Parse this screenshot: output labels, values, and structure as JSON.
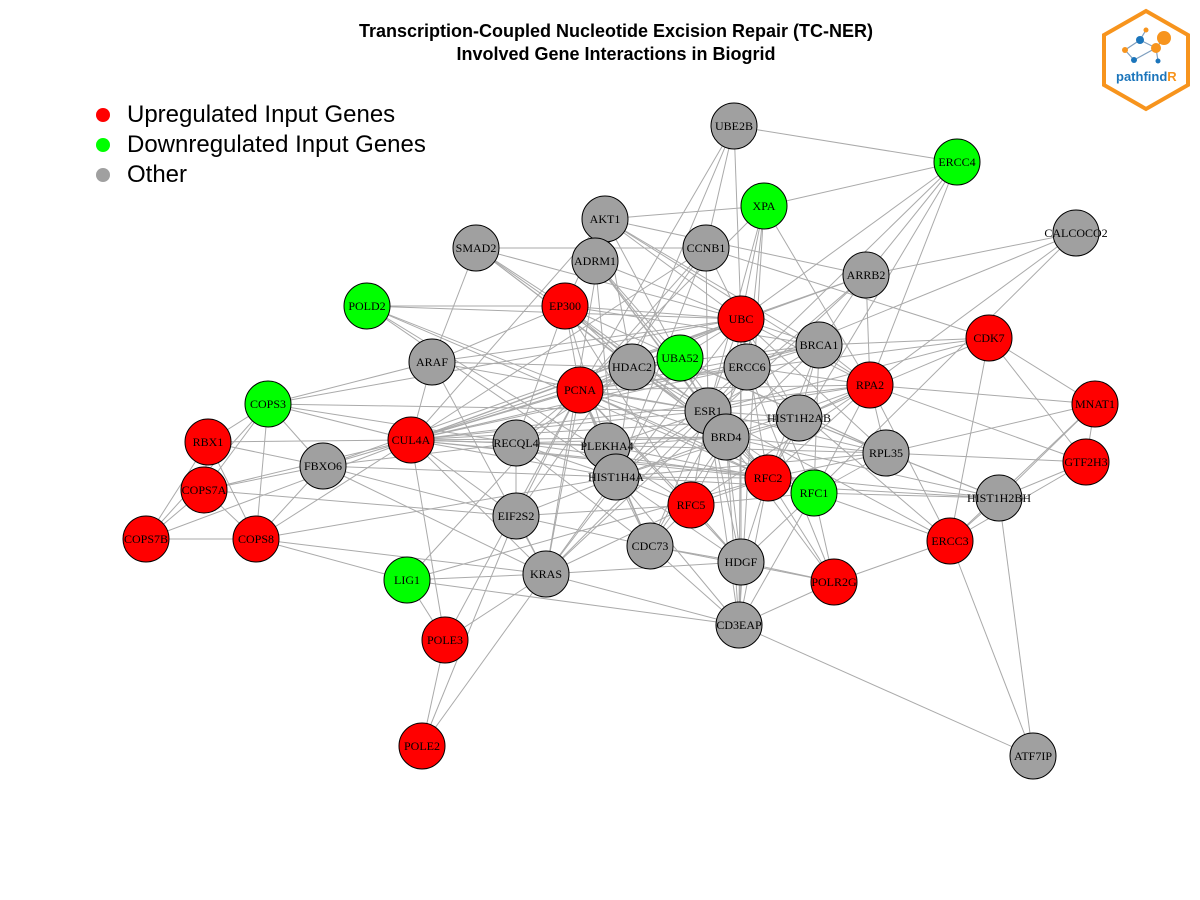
{
  "title": {
    "line1": "Transcription-Coupled Nucleotide Excision Repair (TC-NER)",
    "line2": "Involved Gene Interactions in Biogrid"
  },
  "legend": [
    {
      "label": "Upregulated Input Genes",
      "color": "#ff0000"
    },
    {
      "label": "Downregulated Input Genes",
      "color": "#00ff00"
    },
    {
      "label": "Other",
      "color": "#a0a0a0"
    }
  ],
  "logo": {
    "text_main": "pathfind",
    "text_accent": "R"
  },
  "colors": {
    "up": "#ff0000",
    "down": "#00ff00",
    "other": "#a0a0a0",
    "edge": "#aaaaaa",
    "logo_orange": "#f7941d",
    "logo_blue": "#1b75bb"
  },
  "nodes": [
    {
      "id": "UBE2B",
      "type": "other"
    },
    {
      "id": "ERCC4",
      "type": "down"
    },
    {
      "id": "XPA",
      "type": "down"
    },
    {
      "id": "AKT1",
      "type": "other"
    },
    {
      "id": "CALCOCO2",
      "type": "other"
    },
    {
      "id": "SMAD2",
      "type": "other"
    },
    {
      "id": "CCNB1",
      "type": "other"
    },
    {
      "id": "ADRM1",
      "type": "other"
    },
    {
      "id": "ARRB2",
      "type": "other"
    },
    {
      "id": "POLD2",
      "type": "down"
    },
    {
      "id": "EP300",
      "type": "up"
    },
    {
      "id": "UBC",
      "type": "up"
    },
    {
      "id": "CDK7",
      "type": "up"
    },
    {
      "id": "BRCA1",
      "type": "other"
    },
    {
      "id": "UBA52",
      "type": "down"
    },
    {
      "id": "ARAF",
      "type": "other"
    },
    {
      "id": "HDAC2",
      "type": "other"
    },
    {
      "id": "ERCC6",
      "type": "other"
    },
    {
      "id": "RPA2",
      "type": "up"
    },
    {
      "id": "MNAT1",
      "type": "up"
    },
    {
      "id": "PCNA",
      "type": "up"
    },
    {
      "id": "COPS3",
      "type": "down"
    },
    {
      "id": "ESR1",
      "type": "other"
    },
    {
      "id": "HIST1H2AB",
      "type": "other"
    },
    {
      "id": "RBX1",
      "type": "up"
    },
    {
      "id": "CUL4A",
      "type": "up"
    },
    {
      "id": "RECQL4",
      "type": "other"
    },
    {
      "id": "PLEKHA4",
      "type": "other"
    },
    {
      "id": "BRD4",
      "type": "other"
    },
    {
      "id": "RPL35",
      "type": "other"
    },
    {
      "id": "GTF2H3",
      "type": "up"
    },
    {
      "id": "FBXO6",
      "type": "other"
    },
    {
      "id": "HIST1H4A",
      "type": "other"
    },
    {
      "id": "RFC2",
      "type": "up"
    },
    {
      "id": "COPS7A",
      "type": "up"
    },
    {
      "id": "RFC1",
      "type": "down"
    },
    {
      "id": "HIST1H2BH",
      "type": "other"
    },
    {
      "id": "RFC5",
      "type": "up"
    },
    {
      "id": "EIF2S2",
      "type": "other"
    },
    {
      "id": "COPS7B",
      "type": "up"
    },
    {
      "id": "COPS8",
      "type": "up"
    },
    {
      "id": "ERCC3",
      "type": "up"
    },
    {
      "id": "CDC73",
      "type": "other"
    },
    {
      "id": "HDGF",
      "type": "other"
    },
    {
      "id": "LIG1",
      "type": "down"
    },
    {
      "id": "KRAS",
      "type": "other"
    },
    {
      "id": "POLR2G",
      "type": "up"
    },
    {
      "id": "CD3EAP",
      "type": "other"
    },
    {
      "id": "POLE3",
      "type": "up"
    },
    {
      "id": "POLE2",
      "type": "up"
    },
    {
      "id": "ATF7IP",
      "type": "other"
    }
  ],
  "edges": [
    [
      "UBE2B",
      "ERCC4"
    ],
    [
      "UBE2B",
      "UBC"
    ],
    [
      "UBE2B",
      "CCNB1"
    ],
    [
      "UBE2B",
      "PCNA"
    ],
    [
      "UBE2B",
      "HDAC2"
    ],
    [
      "ERCC4",
      "XPA"
    ],
    [
      "ERCC4",
      "RPA2"
    ],
    [
      "ERCC4",
      "ARRB2"
    ],
    [
      "ERCC4",
      "UBC"
    ],
    [
      "ERCC4",
      "ERCC6"
    ],
    [
      "ERCC4",
      "RFC2"
    ],
    [
      "XPA",
      "RPA2"
    ],
    [
      "XPA",
      "UBC"
    ],
    [
      "XPA",
      "PCNA"
    ],
    [
      "XPA",
      "ESR1"
    ],
    [
      "XPA",
      "CD3EAP"
    ],
    [
      "XPA",
      "ERCC6"
    ],
    [
      "AKT1",
      "XPA"
    ],
    [
      "AKT1",
      "EP300"
    ],
    [
      "AKT1",
      "ARRB2"
    ],
    [
      "AKT1",
      "HDAC2"
    ],
    [
      "AKT1",
      "ESR1"
    ],
    [
      "AKT1",
      "CUL4A"
    ],
    [
      "AKT1",
      "UBC"
    ],
    [
      "AKT1",
      "BRCA1"
    ],
    [
      "AKT1",
      "KRAS"
    ],
    [
      "AKT1",
      "RPA2"
    ],
    [
      "CALCOCO2",
      "ARRB2"
    ],
    [
      "CALCOCO2",
      "ERCC6"
    ],
    [
      "CALCOCO2",
      "RPA2"
    ],
    [
      "CALCOCO2",
      "RFC1"
    ],
    [
      "SMAD2",
      "ARAF"
    ],
    [
      "SMAD2",
      "EP300"
    ],
    [
      "SMAD2",
      "ESR1"
    ],
    [
      "SMAD2",
      "UBC"
    ],
    [
      "SMAD2",
      "HDAC2"
    ],
    [
      "SMAD2",
      "BRD4"
    ],
    [
      "SMAD2",
      "CCNB1"
    ],
    [
      "CCNB1",
      "UBC"
    ],
    [
      "CCNB1",
      "PCNA"
    ],
    [
      "CCNB1",
      "CDK7"
    ],
    [
      "CCNB1",
      "ESR1"
    ],
    [
      "CCNB1",
      "HIST1H4A"
    ],
    [
      "CCNB1",
      "CUL4A"
    ],
    [
      "CCNB1",
      "EIF2S2"
    ],
    [
      "ADRM1",
      "UBC"
    ],
    [
      "ADRM1",
      "ESR1"
    ],
    [
      "ADRM1",
      "HIST1H4A"
    ],
    [
      "ADRM1",
      "RFC2"
    ],
    [
      "ADRM1",
      "UBA52"
    ],
    [
      "ADRM1",
      "BRD4"
    ],
    [
      "ARRB2",
      "UBC"
    ],
    [
      "ARRB2",
      "BRCA1"
    ],
    [
      "ARRB2",
      "RPA2"
    ],
    [
      "ARRB2",
      "CUL4A"
    ],
    [
      "ARRB2",
      "ESR1"
    ],
    [
      "ARRB2",
      "KRAS"
    ],
    [
      "POLD2",
      "PCNA"
    ],
    [
      "POLD2",
      "EP300"
    ],
    [
      "POLD2",
      "RFC2"
    ],
    [
      "POLD2",
      "RFC5"
    ],
    [
      "POLD2",
      "HIST1H4A"
    ],
    [
      "POLD2",
      "UBC"
    ],
    [
      "EP300",
      "PCNA"
    ],
    [
      "EP300",
      "ESR1"
    ],
    [
      "EP300",
      "UBC"
    ],
    [
      "EP300",
      "HDAC2"
    ],
    [
      "EP300",
      "BRCA1"
    ],
    [
      "EP300",
      "HIST1H4A"
    ],
    [
      "EP300",
      "RECQL4"
    ],
    [
      "EP300",
      "BRD4"
    ],
    [
      "EP300",
      "ARAF"
    ],
    [
      "EP300",
      "RPL35"
    ],
    [
      "EP300",
      "RFC5"
    ],
    [
      "UBC",
      "UBA52"
    ],
    [
      "UBC",
      "BRCA1"
    ],
    [
      "UBC",
      "PCNA"
    ],
    [
      "UBC",
      "CUL4A"
    ],
    [
      "UBC",
      "ESR1"
    ],
    [
      "UBC",
      "HIST1H2AB"
    ],
    [
      "UBC",
      "RPA2"
    ],
    [
      "UBC",
      "HDAC2"
    ],
    [
      "UBC",
      "BRD4"
    ],
    [
      "UBC",
      "HDGF"
    ],
    [
      "UBC",
      "RFC2"
    ],
    [
      "UBC",
      "ERCC6"
    ],
    [
      "UBC",
      "COPS3"
    ],
    [
      "UBC",
      "FBXO6"
    ],
    [
      "UBC",
      "KRAS"
    ],
    [
      "UBC",
      "RPL35"
    ],
    [
      "UBC",
      "CD3EAP"
    ],
    [
      "UBC",
      "RFC1"
    ],
    [
      "CDK7",
      "MNAT1"
    ],
    [
      "CDK7",
      "GTF2H3"
    ],
    [
      "CDK7",
      "ERCC3"
    ],
    [
      "CDK7",
      "BRCA1"
    ],
    [
      "CDK7",
      "ESR1"
    ],
    [
      "CDK7",
      "HIST1H2AB"
    ],
    [
      "CDK7",
      "PCNA"
    ],
    [
      "BRCA1",
      "RPA2"
    ],
    [
      "BRCA1",
      "ERCC6"
    ],
    [
      "BRCA1",
      "PCNA"
    ],
    [
      "BRCA1",
      "ESR1"
    ],
    [
      "BRCA1",
      "HDAC2"
    ],
    [
      "BRCA1",
      "RFC2"
    ],
    [
      "BRCA1",
      "RFC1"
    ],
    [
      "BRCA1",
      "CUL4A"
    ],
    [
      "BRCA1",
      "HIST1H2AB"
    ],
    [
      "BRCA1",
      "BRD4"
    ],
    [
      "UBA52",
      "PCNA"
    ],
    [
      "UBA52",
      "ESR1"
    ],
    [
      "UBA52",
      "RPL35"
    ],
    [
      "UBA52",
      "CUL4A"
    ],
    [
      "UBA52",
      "RFC2"
    ],
    [
      "UBA52",
      "HDAC2"
    ],
    [
      "UBA52",
      "HIST1H4A"
    ],
    [
      "ARAF",
      "KRAS"
    ],
    [
      "ARAF",
      "COPS3"
    ],
    [
      "ARAF",
      "CUL4A"
    ],
    [
      "ARAF",
      "ESR1"
    ],
    [
      "ARAF",
      "UBC"
    ],
    [
      "ARAF",
      "HDAC2"
    ],
    [
      "HDAC2",
      "PCNA"
    ],
    [
      "HDAC2",
      "ESR1"
    ],
    [
      "HDAC2",
      "HIST1H4A"
    ],
    [
      "HDAC2",
      "BRD4"
    ],
    [
      "HDAC2",
      "CUL4A"
    ],
    [
      "HDAC2",
      "RECQL4"
    ],
    [
      "HDAC2",
      "RFC1"
    ],
    [
      "ERCC6",
      "RPA2"
    ],
    [
      "ERCC6",
      "PCNA"
    ],
    [
      "ERCC6",
      "ESR1"
    ],
    [
      "ERCC6",
      "HIST1H4A"
    ],
    [
      "ERCC6",
      "CDC73"
    ],
    [
      "ERCC6",
      "ERCC3"
    ],
    [
      "ERCC6",
      "POLR2G"
    ],
    [
      "ERCC6",
      "CUL4A"
    ],
    [
      "RPA2",
      "PCNA"
    ],
    [
      "RPA2",
      "RFC2"
    ],
    [
      "RPA2",
      "RFC1"
    ],
    [
      "RPA2",
      "RFC5"
    ],
    [
      "RPA2",
      "CUL4A"
    ],
    [
      "RPA2",
      "ESR1"
    ],
    [
      "RPA2",
      "HIST1H2AB"
    ],
    [
      "RPA2",
      "RPL35"
    ],
    [
      "RPA2",
      "GTF2H3"
    ],
    [
      "RPA2",
      "MNAT1"
    ],
    [
      "RPA2",
      "ERCC3"
    ],
    [
      "RPA2",
      "BRD4"
    ],
    [
      "MNAT1",
      "GTF2H3"
    ],
    [
      "MNAT1",
      "ERCC3"
    ],
    [
      "MNAT1",
      "HIST1H2BH"
    ],
    [
      "MNAT1",
      "RPL35"
    ],
    [
      "PCNA",
      "CUL4A"
    ],
    [
      "PCNA",
      "RFC2"
    ],
    [
      "PCNA",
      "RFC5"
    ],
    [
      "PCNA",
      "RFC1"
    ],
    [
      "PCNA",
      "LIG1"
    ],
    [
      "PCNA",
      "POLE3"
    ],
    [
      "PCNA",
      "ESR1"
    ],
    [
      "PCNA",
      "HIST1H4A"
    ],
    [
      "PCNA",
      "RECQL4"
    ],
    [
      "PCNA",
      "CDC73"
    ],
    [
      "PCNA",
      "HDGF"
    ],
    [
      "PCNA",
      "BRD4"
    ],
    [
      "PCNA",
      "PLEKHA4"
    ],
    [
      "PCNA",
      "EIF2S2"
    ],
    [
      "PCNA",
      "KRAS"
    ],
    [
      "COPS3",
      "RBX1"
    ],
    [
      "COPS3",
      "COPS7A"
    ],
    [
      "COPS3",
      "COPS7B"
    ],
    [
      "COPS3",
      "COPS8"
    ],
    [
      "COPS3",
      "CUL4A"
    ],
    [
      "COPS3",
      "FBXO6"
    ],
    [
      "COPS3",
      "RECQL4"
    ],
    [
      "COPS3",
      "ESR1"
    ],
    [
      "ESR1",
      "HIST1H2AB"
    ],
    [
      "ESR1",
      "BRD4"
    ],
    [
      "ESR1",
      "HIST1H4A"
    ],
    [
      "ESR1",
      "RPL35"
    ],
    [
      "ESR1",
      "CUL4A"
    ],
    [
      "ESR1",
      "RFC2"
    ],
    [
      "ESR1",
      "KRAS"
    ],
    [
      "ESR1",
      "RFC5"
    ],
    [
      "ESR1",
      "CDC73"
    ],
    [
      "ESR1",
      "HDGF"
    ],
    [
      "ESR1",
      "CD3EAP"
    ],
    [
      "ESR1",
      "PLEKHA4"
    ],
    [
      "ESR1",
      "ERCC3"
    ],
    [
      "HIST1H2AB",
      "BRD4"
    ],
    [
      "HIST1H2AB",
      "HIST1H4A"
    ],
    [
      "HIST1H2AB",
      "RPL35"
    ],
    [
      "HIST1H2AB",
      "HIST1H2BH"
    ],
    [
      "HIST1H2AB",
      "RFC2"
    ],
    [
      "HIST1H2AB",
      "CUL4A"
    ],
    [
      "RBX1",
      "CUL4A"
    ],
    [
      "RBX1",
      "COPS7A"
    ],
    [
      "RBX1",
      "COPS7B"
    ],
    [
      "RBX1",
      "COPS8"
    ],
    [
      "RBX1",
      "FBXO6"
    ],
    [
      "CUL4A",
      "COPS7A"
    ],
    [
      "CUL4A",
      "COPS7B"
    ],
    [
      "CUL4A",
      "COPS8"
    ],
    [
      "CUL4A",
      "FBXO6"
    ],
    [
      "CUL4A",
      "HIST1H4A"
    ],
    [
      "CUL4A",
      "BRD4"
    ],
    [
      "CUL4A",
      "RPL35"
    ],
    [
      "CUL4A",
      "RFC2"
    ],
    [
      "CUL4A",
      "POLE3"
    ],
    [
      "CUL4A",
      "KRAS"
    ],
    [
      "CUL4A",
      "EIF2S2"
    ],
    [
      "CUL4A",
      "RECQL4"
    ],
    [
      "CUL4A",
      "PLEKHA4"
    ],
    [
      "CUL4A",
      "HIST1H2BH"
    ],
    [
      "RECQL4",
      "PLEKHA4"
    ],
    [
      "RECQL4",
      "HIST1H4A"
    ],
    [
      "RECQL4",
      "RFC2"
    ],
    [
      "RECQL4",
      "FBXO6"
    ],
    [
      "RECQL4",
      "BRD4"
    ],
    [
      "RECQL4",
      "EIF2S2"
    ],
    [
      "RECQL4",
      "CDC73"
    ],
    [
      "PLEKHA4",
      "HIST1H4A"
    ],
    [
      "PLEKHA4",
      "BRD4"
    ],
    [
      "PLEKHA4",
      "RFC2"
    ],
    [
      "PLEKHA4",
      "CDC73"
    ],
    [
      "BRD4",
      "HIST1H4A"
    ],
    [
      "BRD4",
      "RPL35"
    ],
    [
      "BRD4",
      "RFC2"
    ],
    [
      "BRD4",
      "HDGF"
    ],
    [
      "BRD4",
      "CD3EAP"
    ],
    [
      "BRD4",
      "RFC5"
    ],
    [
      "BRD4",
      "CDC73"
    ],
    [
      "BRD4",
      "POLR2G"
    ],
    [
      "BRD4",
      "HIST1H2BH"
    ],
    [
      "RPL35",
      "HIST1H2BH"
    ],
    [
      "RPL35",
      "RFC2"
    ],
    [
      "RPL35",
      "GTF2H3"
    ],
    [
      "RPL35",
      "RFC1"
    ],
    [
      "RPL35",
      "HIST1H4A"
    ],
    [
      "GTF2H3",
      "ERCC3"
    ],
    [
      "GTF2H3",
      "HIST1H2BH"
    ],
    [
      "FBXO6",
      "COPS7A"
    ],
    [
      "FBXO6",
      "COPS8"
    ],
    [
      "FBXO6",
      "HIST1H4A"
    ],
    [
      "FBXO6",
      "KRAS"
    ],
    [
      "FBXO6",
      "EIF2S2"
    ],
    [
      "HIST1H4A",
      "RFC2"
    ],
    [
      "HIST1H4A",
      "RFC5"
    ],
    [
      "HIST1H4A",
      "HIST1H2BH"
    ],
    [
      "HIST1H4A",
      "CDC73"
    ],
    [
      "HIST1H4A",
      "HDGF"
    ],
    [
      "HIST1H4A",
      "CD3EAP"
    ],
    [
      "HIST1H4A",
      "KRAS"
    ],
    [
      "HIST1H4A",
      "EIF2S2"
    ],
    [
      "HIST1H4A",
      "COPS8"
    ],
    [
      "RFC2",
      "RFC1"
    ],
    [
      "RFC2",
      "RFC5"
    ],
    [
      "RFC2",
      "POLR2G"
    ],
    [
      "RFC2",
      "CD3EAP"
    ],
    [
      "RFC2",
      "HDGF"
    ],
    [
      "RFC2",
      "LIG1"
    ],
    [
      "COPS7A",
      "COPS7B"
    ],
    [
      "COPS7A",
      "COPS8"
    ],
    [
      "COPS7A",
      "EIF2S2"
    ],
    [
      "RFC1",
      "RFC5"
    ],
    [
      "RFC1",
      "POLR2G"
    ],
    [
      "RFC1",
      "HIST1H2BH"
    ],
    [
      "RFC1",
      "CD3EAP"
    ],
    [
      "RFC1",
      "ERCC3"
    ],
    [
      "RFC1",
      "HDGF"
    ],
    [
      "RFC5",
      "CDC73"
    ],
    [
      "RFC5",
      "HDGF"
    ],
    [
      "RFC5",
      "KRAS"
    ],
    [
      "RFC5",
      "EIF2S2"
    ],
    [
      "EIF2S2",
      "KRAS"
    ],
    [
      "EIF2S2",
      "CDC73"
    ],
    [
      "EIF2S2",
      "POLE2"
    ],
    [
      "COPS7B",
      "COPS8"
    ],
    [
      "COPS8",
      "KRAS"
    ],
    [
      "COPS8",
      "LIG1"
    ],
    [
      "ERCC3",
      "POLR2G"
    ],
    [
      "ERCC3",
      "ATF7IP"
    ],
    [
      "ERCC3",
      "HIST1H2BH"
    ],
    [
      "CDC73",
      "HDGF"
    ],
    [
      "CDC73",
      "CD3EAP"
    ],
    [
      "CDC73",
      "POLR2G"
    ],
    [
      "HDGF",
      "CD3EAP"
    ],
    [
      "HDGF",
      "POLR2G"
    ],
    [
      "HDGF",
      "KRAS"
    ],
    [
      "LIG1",
      "POLE3"
    ],
    [
      "LIG1",
      "KRAS"
    ],
    [
      "LIG1",
      "CD3EAP"
    ],
    [
      "KRAS",
      "POLE2"
    ],
    [
      "KRAS",
      "POLE3"
    ],
    [
      "KRAS",
      "CD3EAP"
    ],
    [
      "POLR2G",
      "CD3EAP"
    ],
    [
      "CD3EAP",
      "ATF7IP"
    ],
    [
      "POLE3",
      "POLE2"
    ],
    [
      "HIST1H2BH",
      "ATF7IP"
    ]
  ]
}
